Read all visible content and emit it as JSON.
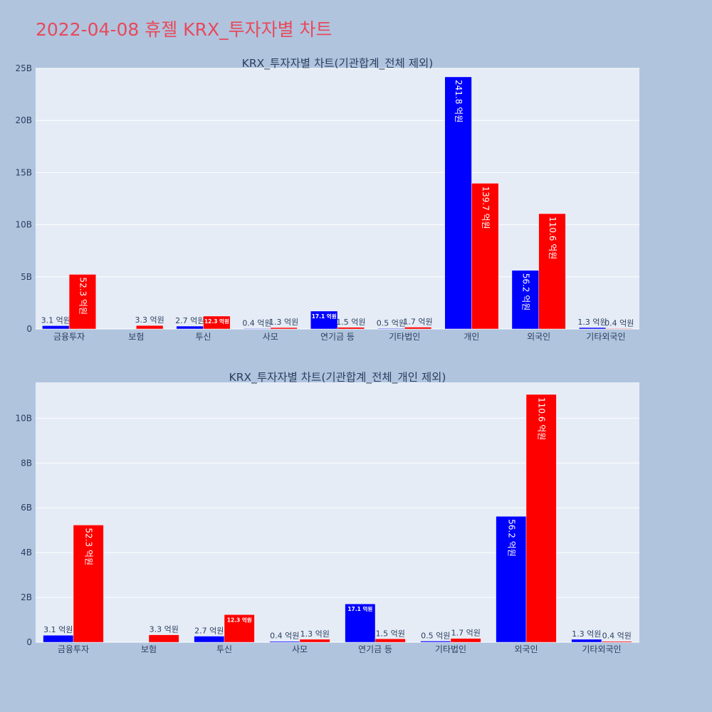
{
  "page": {
    "title": "2022-04-08 휴젤 KRX_투자자별 차트"
  },
  "colors": {
    "background": "#b0c4de",
    "plot_bg": "#e5ecf6",
    "gridline": "#ffffff",
    "title_color": "#e8495b",
    "buy_color": "#0000ff",
    "sell_color": "#ff0000",
    "axis_text": "#2a3f5f"
  },
  "chart_data": [
    {
      "type": "bar",
      "title": "KRX_투자자별 차트(기관합계_전체 제외)",
      "categories": [
        "금융투자",
        "보험",
        "투신",
        "사모",
        "연기금 등",
        "기타법인",
        "개인",
        "외국인",
        "기타외국인"
      ],
      "series": [
        {
          "color": "#0000ff",
          "values": [
            0.31,
            0,
            0.27,
            0.04,
            1.71,
            0.05,
            24.18,
            5.62,
            0.13
          ],
          "labels": [
            "3.1 억원",
            "",
            "2.7 억원",
            "0.4 억원",
            "17.1 억원",
            "0.5 억원",
            "241.8 억원",
            "56.2 억원",
            "1.3 억원"
          ]
        },
        {
          "color": "#ff0000",
          "values": [
            5.23,
            0.33,
            1.23,
            0.13,
            0.15,
            0.17,
            13.97,
            11.06,
            0.04
          ],
          "labels": [
            "52.3 억원",
            "3.3 억원",
            "12.3 억원",
            "1.3 억원",
            "1.5 억원",
            "1.7 억원",
            "139.7 억원",
            "110.6 억원",
            "0.4 억원"
          ]
        }
      ],
      "ylim": [
        0,
        25
      ],
      "yticks": [
        0,
        5,
        10,
        15,
        20,
        25
      ],
      "ytick_labels": [
        "0",
        "5B",
        "10B",
        "15B",
        "20B",
        "25B"
      ],
      "grid": true
    },
    {
      "type": "bar",
      "title": "KRX_투자자별 차트(기관합계_전체_개인 제외)",
      "categories": [
        "금융투자",
        "보험",
        "투신",
        "사모",
        "연기금 등",
        "기타법인",
        "외국인",
        "기타외국인"
      ],
      "series": [
        {
          "color": "#0000ff",
          "values": [
            0.31,
            0,
            0.27,
            0.04,
            1.71,
            0.05,
            5.62,
            0.13
          ],
          "labels": [
            "3.1 억원",
            "",
            "2.7 억원",
            "0.4 억원",
            "17.1 억원",
            "0.5 억원",
            "56.2 억원",
            "1.3 억원"
          ]
        },
        {
          "color": "#ff0000",
          "values": [
            5.23,
            0.33,
            1.23,
            0.13,
            0.15,
            0.17,
            11.06,
            0.04
          ],
          "labels": [
            "52.3 억원",
            "3.3 억원",
            "12.3 억원",
            "1.3 억원",
            "1.5 억원",
            "1.7 억원",
            "110.6 억원",
            "0.4 억원"
          ]
        }
      ],
      "ylim": [
        0,
        11.6
      ],
      "yticks": [
        0,
        2,
        4,
        6,
        8,
        10
      ],
      "ytick_labels": [
        "0",
        "2B",
        "4B",
        "6B",
        "8B",
        "10B"
      ],
      "grid": true
    }
  ]
}
